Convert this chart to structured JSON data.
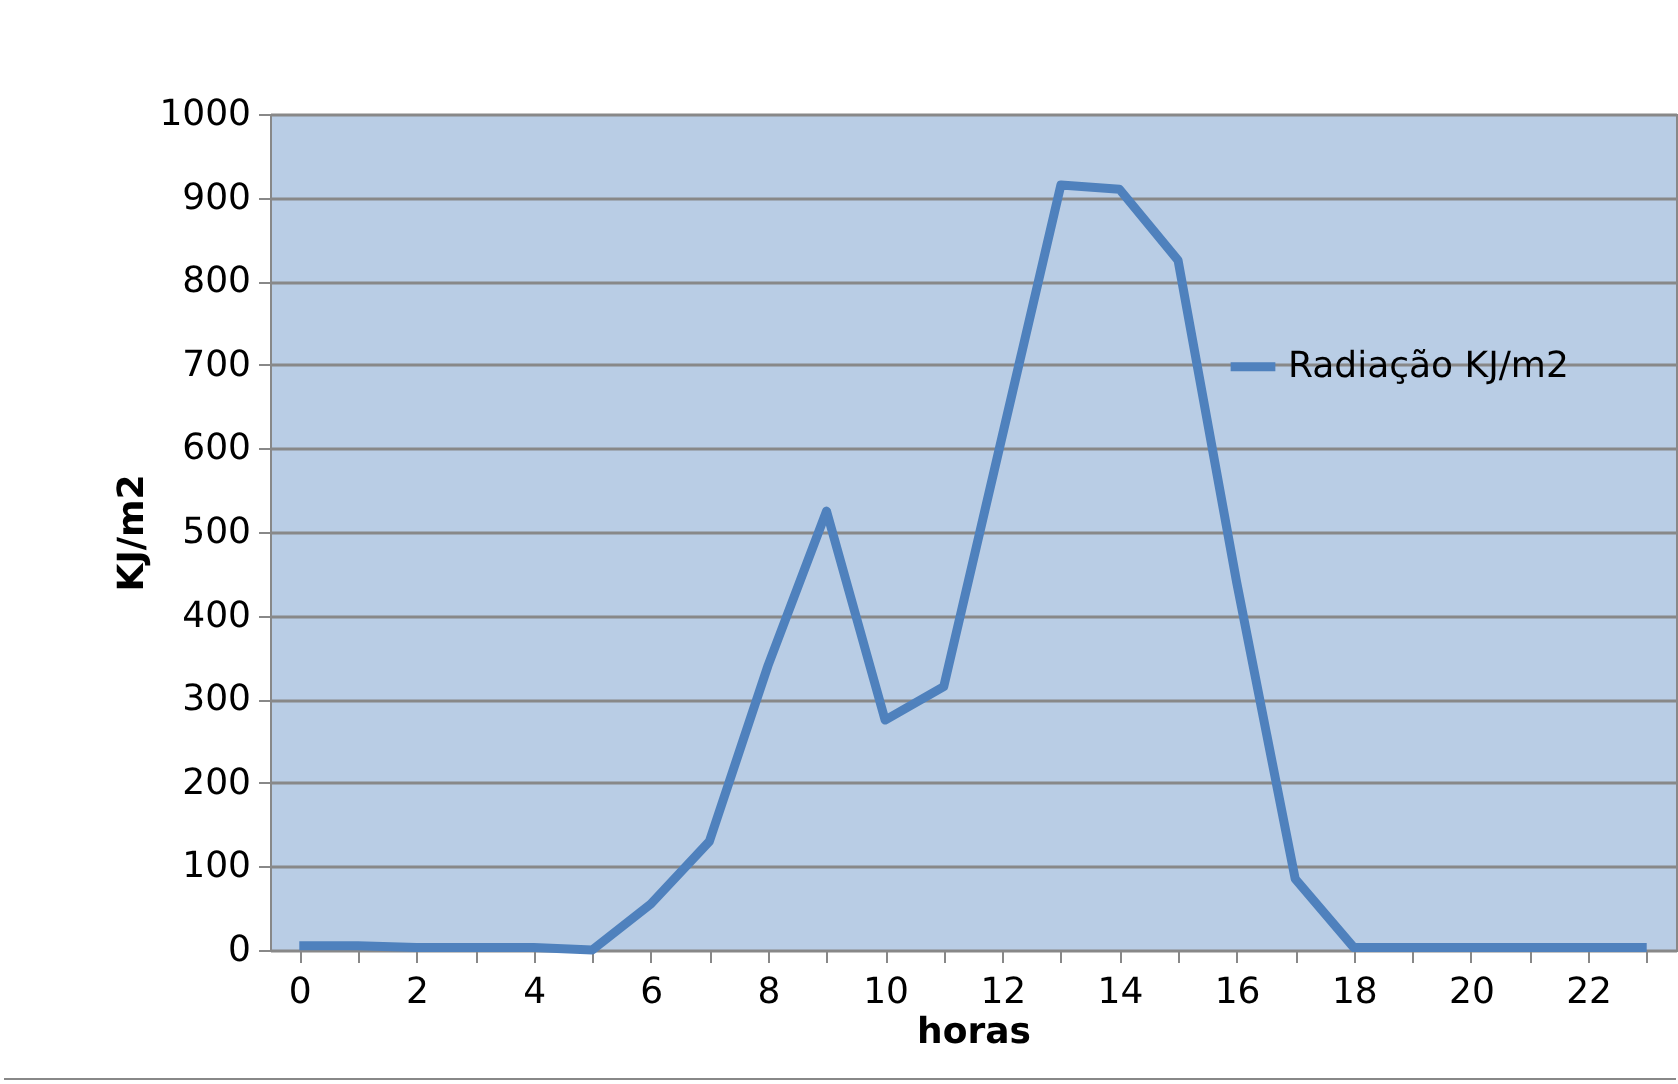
{
  "chart_data": {
    "type": "line",
    "xlabel": "horas",
    "ylabel": "KJ/m2",
    "categories": [
      "0",
      null,
      "2",
      null,
      "4",
      null,
      "6",
      null,
      "8",
      null,
      "10",
      null,
      "12",
      null,
      "14",
      null,
      "16",
      null,
      "18",
      null,
      "20",
      null,
      "22",
      null
    ],
    "series": [
      {
        "name": "Radiação KJ/m2",
        "color": "#4f81bd",
        "values": [
          5,
          5,
          3,
          3,
          3,
          0,
          55,
          130,
          340,
          525,
          275,
          315,
          615,
          915,
          910,
          825,
          440,
          85,
          3,
          3,
          3,
          3,
          3,
          3
        ]
      }
    ],
    "ylim": [
      0,
      1000
    ],
    "yticks": [
      0,
      100,
      200,
      300,
      400,
      500,
      600,
      700,
      800,
      900,
      1000
    ],
    "grid": "y",
    "legend": "right",
    "marker": "none",
    "line_style": "solid"
  }
}
